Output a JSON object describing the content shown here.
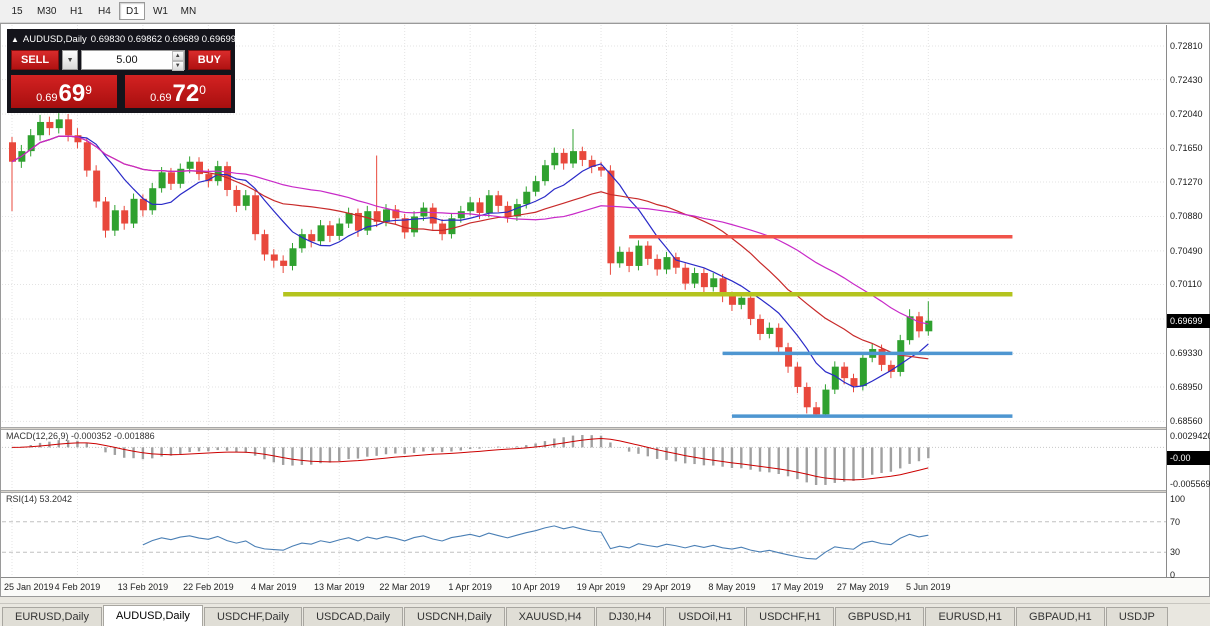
{
  "toolbar": {
    "timeframes": [
      {
        "label": "15",
        "active": false
      },
      {
        "label": "M30",
        "active": false
      },
      {
        "label": "H1",
        "active": false
      },
      {
        "label": "H4",
        "active": false
      },
      {
        "label": "D1",
        "active": true
      },
      {
        "label": "W1",
        "active": false
      },
      {
        "label": "MN",
        "active": false
      }
    ]
  },
  "symbol_readout": {
    "collapse_icon": "▲",
    "symbol": "AUDUSD,Daily",
    "ohlc_text": "0.69830 0.69862 0.69689 0.69699"
  },
  "trade_panel": {
    "sell_label": "SELL",
    "buy_label": "BUY",
    "volume": "5.00",
    "sell_price": {
      "prefix": "0.69",
      "pips": "69",
      "point": "9"
    },
    "buy_price": {
      "prefix": "0.69",
      "pips": "72",
      "point": "0"
    }
  },
  "price_scale": {
    "labels": [
      "0.72810",
      "0.72430",
      "0.72040",
      "0.71650",
      "0.71270",
      "0.70880",
      "0.70490",
      "0.70110",
      "0.69330",
      "0.68950",
      "0.68560"
    ],
    "current": "0.69699"
  },
  "macd_panel": {
    "title": "MACD(12,26,9) -0.000352 -0.001886",
    "scale_top": "0.0029420",
    "scale_current": "-0.00",
    "scale_bottom": "-0.0055690"
  },
  "rsi_panel": {
    "title": "RSI(14) 53.2042",
    "scale": [
      100,
      70,
      30,
      0
    ],
    "dashed_levels": [
      70,
      30
    ]
  },
  "date_axis": {
    "dates": [
      "25 Jan 2019",
      "4 Feb 2019",
      "13 Feb 2019",
      "22 Feb 2019",
      "4 Mar 2019",
      "13 Mar 2019",
      "22 Mar 2019",
      "1 Apr 2019",
      "10 Apr 2019",
      "19 Apr 2019",
      "29 Apr 2019",
      "8 May 2019",
      "17 May 2019",
      "27 May 2019",
      "5 Jun 2019"
    ],
    "tick_candle_indices": [
      0,
      7,
      14,
      21,
      28,
      35,
      42,
      49,
      56,
      63,
      70,
      77,
      84,
      91,
      98
    ]
  },
  "chart_data": {
    "type": "candlestick",
    "symbol": "AUDUSD",
    "timeframe": "Daily",
    "title": "AUDUSD,Daily",
    "ohlc_readout": [
      0.6983,
      0.69862,
      0.69689,
      0.69699
    ],
    "current_price": 0.69699,
    "price_axis": {
      "min": 0.6856,
      "max": 0.7281,
      "gridlines": [
        0.7281,
        0.7243,
        0.7204,
        0.7165,
        0.7127,
        0.7088,
        0.7049,
        0.7011,
        0.6972,
        0.6933,
        0.6895,
        0.6856
      ]
    },
    "candles": [
      [
        0.7172,
        0.7178,
        0.7094,
        0.715
      ],
      [
        0.715,
        0.7169,
        0.7143,
        0.7162
      ],
      [
        0.7162,
        0.7187,
        0.7156,
        0.718
      ],
      [
        0.718,
        0.7203,
        0.7174,
        0.7195
      ],
      [
        0.7195,
        0.7201,
        0.718,
        0.7188
      ],
      [
        0.7188,
        0.7205,
        0.7182,
        0.7198
      ],
      [
        0.7198,
        0.7204,
        0.7173,
        0.718
      ],
      [
        0.718,
        0.7188,
        0.7165,
        0.7172
      ],
      [
        0.7172,
        0.7177,
        0.7133,
        0.714
      ],
      [
        0.714,
        0.7146,
        0.7098,
        0.7105
      ],
      [
        0.7105,
        0.711,
        0.7064,
        0.7072
      ],
      [
        0.7072,
        0.7101,
        0.7066,
        0.7095
      ],
      [
        0.7095,
        0.71,
        0.7073,
        0.708
      ],
      [
        0.708,
        0.7114,
        0.7075,
        0.7108
      ],
      [
        0.7108,
        0.7113,
        0.7088,
        0.7095
      ],
      [
        0.7095,
        0.7126,
        0.709,
        0.712
      ],
      [
        0.712,
        0.7144,
        0.7115,
        0.7138
      ],
      [
        0.7138,
        0.7143,
        0.7118,
        0.7125
      ],
      [
        0.7125,
        0.7148,
        0.712,
        0.7142
      ],
      [
        0.7142,
        0.7156,
        0.7137,
        0.715
      ],
      [
        0.715,
        0.7155,
        0.7129,
        0.7136
      ],
      [
        0.7136,
        0.7142,
        0.7121,
        0.7128
      ],
      [
        0.7128,
        0.7151,
        0.7123,
        0.7145
      ],
      [
        0.7145,
        0.715,
        0.7111,
        0.7118
      ],
      [
        0.7118,
        0.7123,
        0.7093,
        0.71
      ],
      [
        0.71,
        0.7118,
        0.7095,
        0.7112
      ],
      [
        0.7112,
        0.7117,
        0.7061,
        0.7068
      ],
      [
        0.7068,
        0.7073,
        0.7038,
        0.7045
      ],
      [
        0.7045,
        0.7051,
        0.703,
        0.7038
      ],
      [
        0.7038,
        0.7044,
        0.7024,
        0.7032
      ],
      [
        0.7032,
        0.7058,
        0.7027,
        0.7052
      ],
      [
        0.7052,
        0.7074,
        0.7047,
        0.7068
      ],
      [
        0.7068,
        0.7073,
        0.7053,
        0.706
      ],
      [
        0.706,
        0.7084,
        0.7055,
        0.7078
      ],
      [
        0.7078,
        0.7083,
        0.7059,
        0.7066
      ],
      [
        0.7066,
        0.7086,
        0.7061,
        0.708
      ],
      [
        0.708,
        0.7098,
        0.7075,
        0.7092
      ],
      [
        0.7092,
        0.7097,
        0.7065,
        0.7072
      ],
      [
        0.7072,
        0.71,
        0.7067,
        0.7094
      ],
      [
        0.7094,
        0.7157,
        0.7076,
        0.7082
      ],
      [
        0.7082,
        0.7102,
        0.7077,
        0.7096
      ],
      [
        0.7096,
        0.7101,
        0.7079,
        0.7086
      ],
      [
        0.7086,
        0.7091,
        0.7063,
        0.707
      ],
      [
        0.707,
        0.7094,
        0.7065,
        0.7088
      ],
      [
        0.7088,
        0.7104,
        0.7083,
        0.7098
      ],
      [
        0.7098,
        0.7103,
        0.7073,
        0.708
      ],
      [
        0.708,
        0.7085,
        0.7061,
        0.7068
      ],
      [
        0.7068,
        0.7092,
        0.7063,
        0.7086
      ],
      [
        0.7086,
        0.71,
        0.7081,
        0.7094
      ],
      [
        0.7094,
        0.711,
        0.7089,
        0.7104
      ],
      [
        0.7104,
        0.7109,
        0.7085,
        0.7092
      ],
      [
        0.7092,
        0.7118,
        0.7087,
        0.7112
      ],
      [
        0.7112,
        0.7117,
        0.7093,
        0.71
      ],
      [
        0.71,
        0.7105,
        0.7081,
        0.7088
      ],
      [
        0.7088,
        0.7108,
        0.7083,
        0.7102
      ],
      [
        0.7102,
        0.7122,
        0.7097,
        0.7116
      ],
      [
        0.7116,
        0.7134,
        0.7111,
        0.7128
      ],
      [
        0.7128,
        0.7152,
        0.7123,
        0.7146
      ],
      [
        0.7146,
        0.7166,
        0.7141,
        0.716
      ],
      [
        0.716,
        0.7165,
        0.7141,
        0.7148
      ],
      [
        0.7148,
        0.7187,
        0.7143,
        0.7162
      ],
      [
        0.7162,
        0.7167,
        0.7145,
        0.7152
      ],
      [
        0.7152,
        0.7157,
        0.7137,
        0.7144
      ],
      [
        0.7144,
        0.715,
        0.7133,
        0.714
      ],
      [
        0.714,
        0.7146,
        0.7022,
        0.7035
      ],
      [
        0.7035,
        0.7054,
        0.703,
        0.7048
      ],
      [
        0.7048,
        0.7053,
        0.7025,
        0.7032
      ],
      [
        0.7032,
        0.7061,
        0.7027,
        0.7055
      ],
      [
        0.7055,
        0.706,
        0.7033,
        0.704
      ],
      [
        0.704,
        0.7045,
        0.7021,
        0.7028
      ],
      [
        0.7028,
        0.7048,
        0.7023,
        0.7042
      ],
      [
        0.7042,
        0.7047,
        0.7023,
        0.703
      ],
      [
        0.703,
        0.7035,
        0.7005,
        0.7012
      ],
      [
        0.7012,
        0.703,
        0.7007,
        0.7024
      ],
      [
        0.7024,
        0.7029,
        0.7001,
        0.7008
      ],
      [
        0.7008,
        0.7024,
        0.7003,
        0.7018
      ],
      [
        0.7018,
        0.7023,
        0.6991,
        0.6998
      ],
      [
        0.6998,
        0.7003,
        0.6981,
        0.6988
      ],
      [
        0.6988,
        0.7002,
        0.6983,
        0.6996
      ],
      [
        0.6996,
        0.7001,
        0.6965,
        0.6972
      ],
      [
        0.6972,
        0.6977,
        0.6948,
        0.6955
      ],
      [
        0.6955,
        0.6968,
        0.695,
        0.6962
      ],
      [
        0.6962,
        0.6967,
        0.6933,
        0.694
      ],
      [
        0.694,
        0.6945,
        0.6911,
        0.6918
      ],
      [
        0.6918,
        0.6923,
        0.6888,
        0.6895
      ],
      [
        0.6895,
        0.69,
        0.6865,
        0.6872
      ],
      [
        0.6872,
        0.6878,
        0.6862,
        0.6864
      ],
      [
        0.6864,
        0.6898,
        0.6862,
        0.6892
      ],
      [
        0.6892,
        0.6924,
        0.6887,
        0.6918
      ],
      [
        0.6918,
        0.6923,
        0.6898,
        0.6905
      ],
      [
        0.6905,
        0.691,
        0.6889,
        0.6896
      ],
      [
        0.6896,
        0.6934,
        0.6891,
        0.6928
      ],
      [
        0.6928,
        0.6944,
        0.6923,
        0.6938
      ],
      [
        0.6938,
        0.6943,
        0.6913,
        0.692
      ],
      [
        0.692,
        0.6925,
        0.6905,
        0.6912
      ],
      [
        0.6912,
        0.6954,
        0.6907,
        0.6948
      ],
      [
        0.6948,
        0.6983,
        0.6943,
        0.6975
      ],
      [
        0.6975,
        0.698,
        0.6951,
        0.6958
      ],
      [
        0.6958,
        0.6992,
        0.6953,
        0.697
      ]
    ],
    "horizontal_levels": [
      {
        "price": 0.7065,
        "color": "#f0544a",
        "width": 3.5,
        "from_candle": 66,
        "to_candle": 107
      },
      {
        "price": 0.7,
        "color": "#b4c41e",
        "width": 4.5,
        "from_candle": 29,
        "to_candle": 107
      },
      {
        "price": 0.6933,
        "color": "#4e96d1",
        "width": 3.5,
        "from_candle": 76,
        "to_candle": 107
      },
      {
        "price": 0.6862,
        "color": "#4e96d1",
        "width": 3.5,
        "from_candle": 77,
        "to_candle": 107
      }
    ],
    "moving_averages": [
      {
        "period": 8,
        "color": "#2a2ac8"
      },
      {
        "period": 20,
        "color": "#c82a2a"
      },
      {
        "period": 34,
        "color": "#c82ac8"
      }
    ],
    "indicators": [
      {
        "name": "MACD",
        "params": [
          12,
          26,
          9
        ],
        "main_value": -0.000352,
        "signal_value": -0.001886
      },
      {
        "name": "RSI",
        "params": [
          14
        ],
        "value": 53.2042
      }
    ]
  },
  "tabs": [
    {
      "label": "EURUSD,Daily",
      "active": false
    },
    {
      "label": "AUDUSD,Daily",
      "active": true
    },
    {
      "label": "USDCHF,Daily",
      "active": false
    },
    {
      "label": "USDCAD,Daily",
      "active": false
    },
    {
      "label": "USDCNH,Daily",
      "active": false
    },
    {
      "label": "XAUUSD,H4",
      "active": false
    },
    {
      "label": "DJ30,H4",
      "active": false
    },
    {
      "label": "USDOil,H1",
      "active": false
    },
    {
      "label": "USDCHF,H1",
      "active": false
    },
    {
      "label": "GBPUSD,H1",
      "active": false
    },
    {
      "label": "EURUSD,H1",
      "active": false
    },
    {
      "label": "GBPAUD,H1",
      "active": false
    },
    {
      "label": "USDJP",
      "active": false
    }
  ],
  "colors": {
    "up": "#2fa12f",
    "down": "#e8483c",
    "grid": "#e3e3e3",
    "macd_hist": "#a0a0a0",
    "macd_signal": "#cc0000",
    "rsi_line": "#4a7fb5"
  }
}
